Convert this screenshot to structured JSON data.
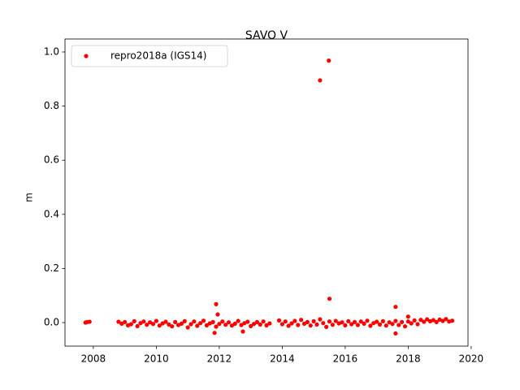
{
  "chart_data": {
    "type": "scatter",
    "title": "SAVO V",
    "y_label": "m",
    "x": [
      2007.75,
      2007.8,
      2007.88,
      2008.8,
      2008.9,
      2009.0,
      2009.1,
      2009.2,
      2009.3,
      2009.4,
      2009.5,
      2009.6,
      2009.7,
      2009.8,
      2009.9,
      2010.0,
      2010.1,
      2010.2,
      2010.3,
      2010.4,
      2010.5,
      2010.6,
      2010.7,
      2010.8,
      2010.9,
      2011.0,
      2011.1,
      2011.2,
      2011.3,
      2011.4,
      2011.5,
      2011.6,
      2011.7,
      2011.8,
      2011.9,
      2012.0,
      2012.1,
      2012.2,
      2012.3,
      2012.4,
      2012.5,
      2012.6,
      2012.7,
      2012.8,
      2012.9,
      2013.0,
      2013.1,
      2013.2,
      2013.3,
      2013.4,
      2013.5,
      2013.6,
      2013.9,
      2014.0,
      2014.1,
      2014.2,
      2014.3,
      2014.4,
      2014.5,
      2014.6,
      2014.7,
      2014.8,
      2014.9,
      2015.0,
      2015.1,
      2015.2,
      2015.3,
      2015.4,
      2015.5,
      2015.6,
      2015.7,
      2015.8,
      2015.9,
      2016.0,
      2016.1,
      2016.2,
      2016.3,
      2016.4,
      2016.5,
      2016.6,
      2016.7,
      2016.8,
      2016.9,
      2017.0,
      2017.1,
      2017.2,
      2017.3,
      2017.4,
      2017.5,
      2017.6,
      2017.7,
      2017.8,
      2017.9,
      2018.0,
      2018.1,
      2018.2,
      2018.3,
      2018.4,
      2018.5,
      2018.6,
      2018.7,
      2018.8,
      2018.9,
      2019.0,
      2019.1,
      2019.2,
      2019.3,
      2019.4,
      2015.2,
      2015.48,
      2015.5,
      2011.9,
      2017.6,
      2011.85,
      2017.6,
      2012.75,
      2011.95,
      2018.0
    ],
    "series": [
      {
        "name": "repro2018a (IGS14)",
        "color": "#ff0000",
        "values": [
          0.0,
          0.002,
          0.003,
          0.003,
          -0.004,
          0.002,
          -0.01,
          -0.006,
          0.005,
          -0.013,
          -0.002,
          0.004,
          -0.008,
          0.001,
          -0.005,
          0.006,
          -0.011,
          -0.003,
          0.003,
          -0.007,
          -0.014,
          0.002,
          -0.009,
          -0.004,
          0.005,
          -0.018,
          -0.006,
          0.004,
          -0.012,
          -0.002,
          0.007,
          -0.01,
          -0.003,
          0.002,
          -0.015,
          -0.005,
          0.004,
          -0.008,
          0.001,
          -0.011,
          -0.004,
          0.006,
          -0.009,
          -0.002,
          0.003,
          -0.013,
          -0.005,
          0.002,
          -0.007,
          0.004,
          -0.01,
          -0.003,
          0.008,
          -0.006,
          0.004,
          -0.012,
          -0.003,
          0.006,
          -0.009,
          0.01,
          -0.004,
          0.002,
          -0.011,
          0.005,
          -0.007,
          0.012,
          -0.002,
          -0.016,
          0.004,
          -0.008,
          0.006,
          -0.003,
          0.001,
          -0.01,
          0.005,
          -0.006,
          0.002,
          -0.009,
          0.004,
          -0.004,
          0.007,
          -0.012,
          -0.002,
          0.003,
          -0.007,
          0.005,
          -0.011,
          0.001,
          -0.005,
          0.006,
          -0.009,
          0.002,
          -0.014,
          0.004,
          -0.003,
          0.008,
          -0.006,
          0.01,
          0.003,
          0.012,
          0.005,
          0.009,
          0.002,
          0.011,
          0.006,
          0.013,
          0.004,
          0.007,
          0.895,
          0.968,
          0.088,
          0.068,
          0.058,
          -0.038,
          -0.04,
          -0.033,
          0.03,
          0.022
        ]
      }
    ],
    "xlim": [
      2007.1,
      2019.9
    ],
    "ylim": [
      -0.087,
      1.048
    ],
    "xticks": [
      2008,
      2010,
      2012,
      2014,
      2016,
      2018,
      2020
    ],
    "yticks": [
      {
        "value": 0,
        "label": "0.0"
      },
      {
        "value": 0.2,
        "label": "0.2"
      },
      {
        "value": 0.4,
        "label": "0.4"
      },
      {
        "value": 0.6,
        "label": "0.6"
      },
      {
        "value": 0.8,
        "label": "0.8"
      },
      {
        "value": 1,
        "label": "1.0"
      }
    ],
    "legend": "upper left",
    "grid": false
  }
}
